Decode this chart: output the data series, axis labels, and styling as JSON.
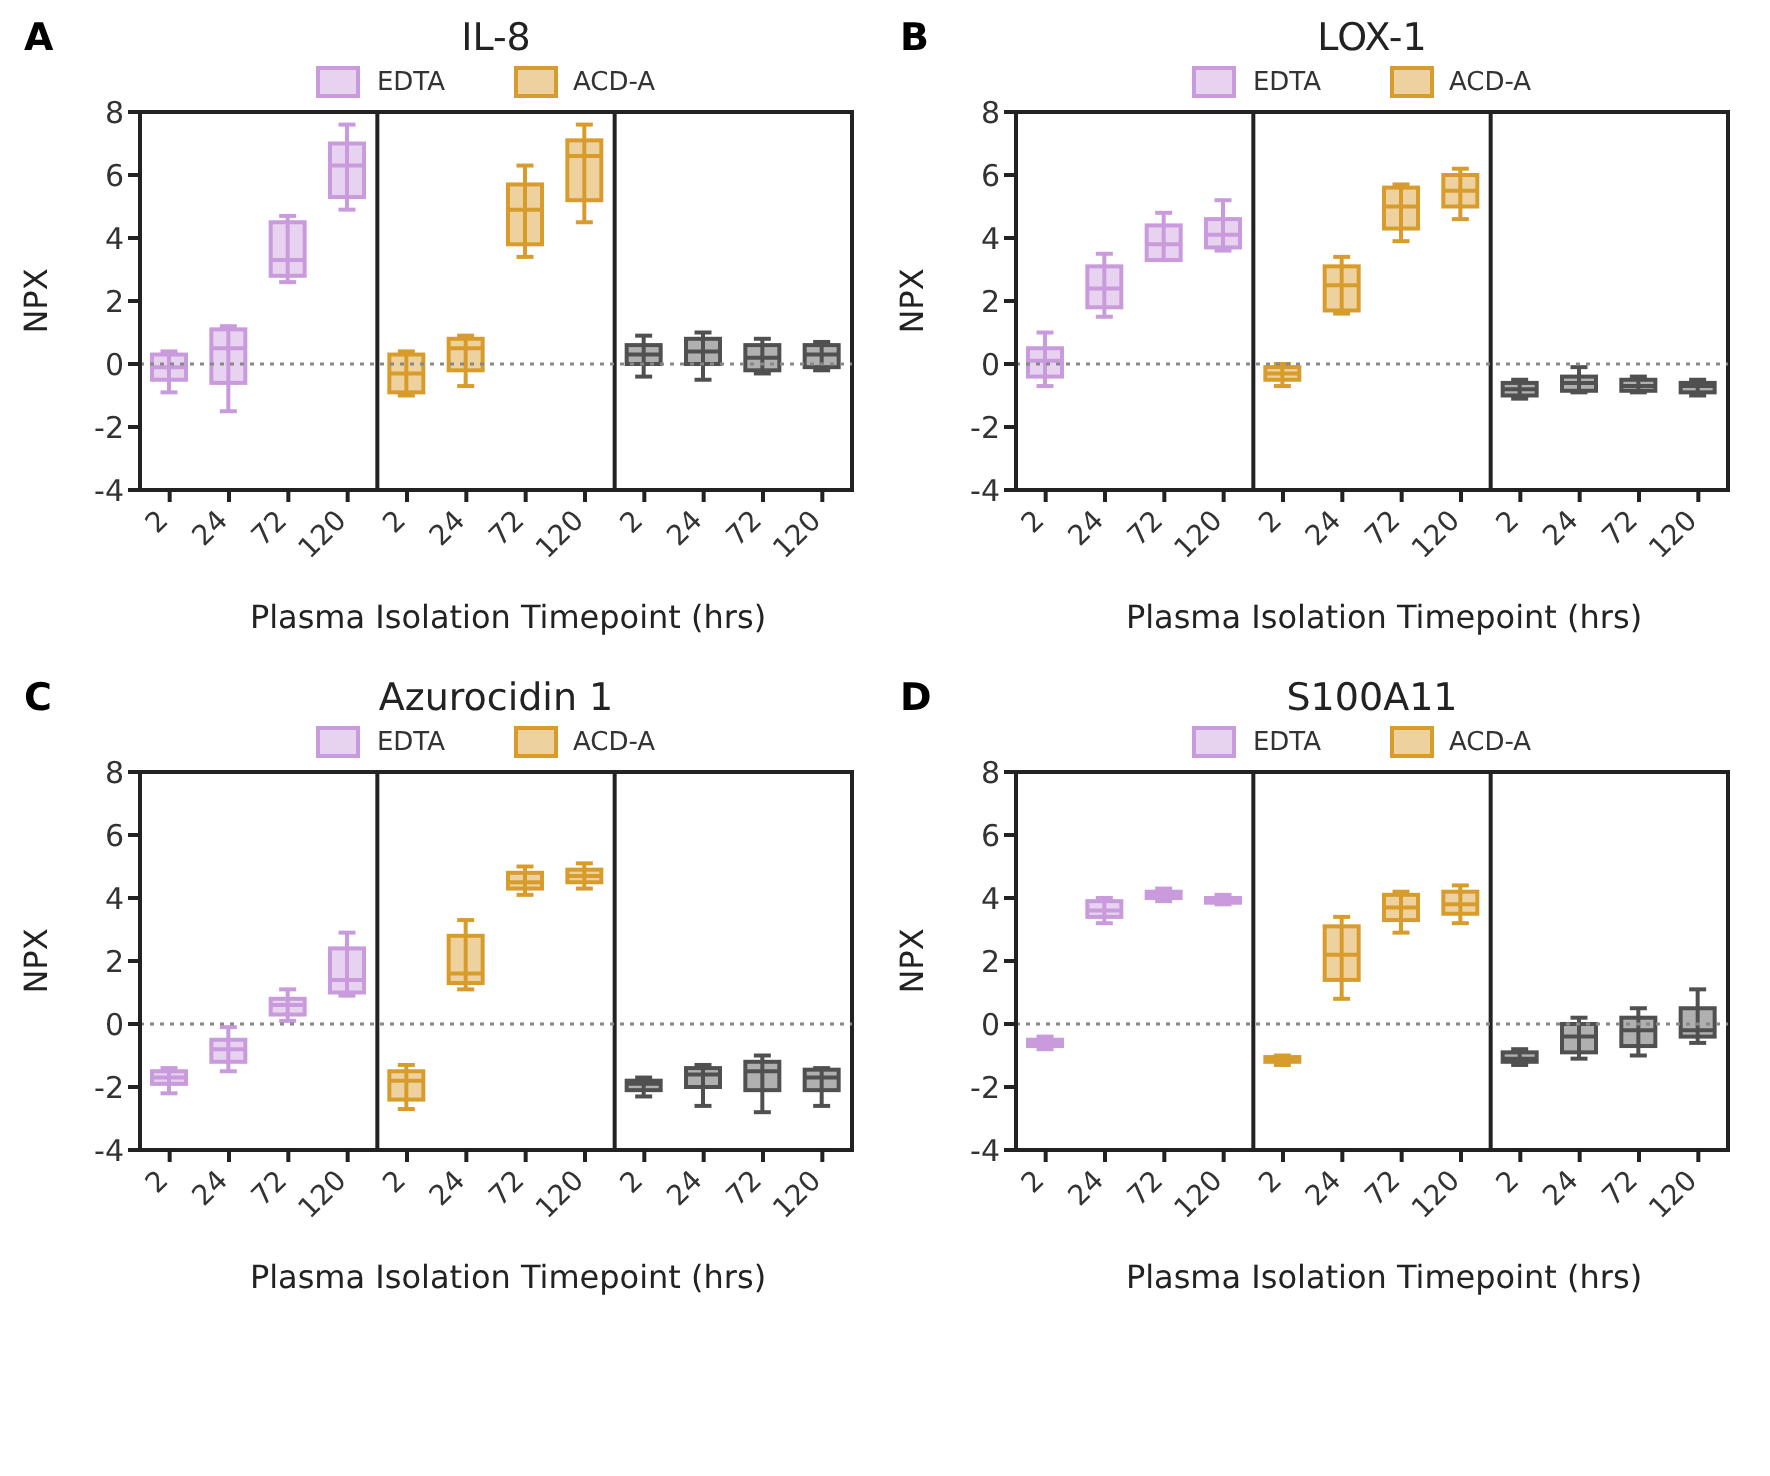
{
  "chart_data": [
    {
      "type": "box",
      "title": "IL-8",
      "annotations": [
        "A"
      ],
      "xlabel": "Plasma Isolation Timepoint (hrs)",
      "ylabel": "NPX",
      "categories": [
        "2",
        "24",
        "72",
        "120",
        "2",
        "24",
        "72",
        "120",
        "2",
        "24",
        "72",
        "120"
      ],
      "ylim": [
        -4,
        8
      ],
      "yticks": [
        -4,
        -2,
        0,
        2,
        4,
        6,
        8
      ],
      "legend": "top",
      "ref_lines": [
        {
          "axis": "y",
          "value": 0,
          "line_style": "dotted",
          "color": "#888888"
        }
      ],
      "series": [
        {
          "name": "EDTA",
          "color": "#c99bdc",
          "boxes": [
            {
              "low": -0.9,
              "q1": -0.5,
              "median": -0.1,
              "q3": 0.3,
              "high": 0.4
            },
            {
              "low": -1.5,
              "q1": -0.6,
              "median": 0.5,
              "q3": 1.1,
              "high": 1.2
            },
            {
              "low": 2.6,
              "q1": 2.8,
              "median": 3.3,
              "q3": 4.5,
              "high": 4.7
            },
            {
              "low": 4.9,
              "q1": 5.3,
              "median": 6.3,
              "q3": 7.0,
              "high": 7.6
            },
            null,
            null,
            null,
            null,
            null,
            null,
            null,
            null
          ]
        },
        {
          "name": "ACD-A",
          "color": "#d89c2c",
          "boxes": [
            null,
            null,
            null,
            null,
            {
              "low": -1.0,
              "q1": -0.9,
              "median": -0.3,
              "q3": 0.3,
              "high": 0.4
            },
            {
              "low": -0.7,
              "q1": -0.2,
              "median": 0.5,
              "q3": 0.8,
              "high": 0.9
            },
            {
              "low": 3.4,
              "q1": 3.8,
              "median": 4.9,
              "q3": 5.7,
              "high": 6.3
            },
            {
              "low": 4.5,
              "q1": 5.2,
              "median": 6.6,
              "q3": 7.1,
              "high": 7.6
            },
            null,
            null,
            null,
            null
          ]
        },
        {
          "color": "#505050",
          "boxes": [
            null,
            null,
            null,
            null,
            null,
            null,
            null,
            null,
            {
              "low": -0.4,
              "q1": 0.0,
              "median": 0.3,
              "q3": 0.6,
              "high": 0.9
            },
            {
              "low": -0.5,
              "q1": 0.0,
              "median": 0.4,
              "q3": 0.8,
              "high": 1.0
            },
            {
              "low": -0.3,
              "q1": -0.2,
              "median": 0.2,
              "q3": 0.6,
              "high": 0.8
            },
            {
              "low": -0.2,
              "q1": -0.1,
              "median": 0.3,
              "q3": 0.6,
              "high": 0.7
            }
          ]
        }
      ]
    },
    {
      "type": "box",
      "title": "LOX-1",
      "annotations": [
        "B"
      ],
      "xlabel": "Plasma Isolation Timepoint (hrs)",
      "ylabel": "NPX",
      "categories": [
        "2",
        "24",
        "72",
        "120",
        "2",
        "24",
        "72",
        "120",
        "2",
        "24",
        "72",
        "120"
      ],
      "ylim": [
        -4,
        8
      ],
      "yticks": [
        -4,
        -2,
        0,
        2,
        4,
        6,
        8
      ],
      "legend": "top",
      "ref_lines": [
        {
          "axis": "y",
          "value": 0,
          "line_style": "dotted",
          "color": "#888888"
        }
      ],
      "series": [
        {
          "name": "EDTA",
          "color": "#c99bdc",
          "boxes": [
            {
              "low": -0.7,
              "q1": -0.4,
              "median": 0.1,
              "q3": 0.5,
              "high": 1.0
            },
            {
              "low": 1.5,
              "q1": 1.8,
              "median": 2.4,
              "q3": 3.1,
              "high": 3.5
            },
            {
              "low": 3.3,
              "q1": 3.3,
              "median": 3.8,
              "q3": 4.4,
              "high": 4.8
            },
            {
              "low": 3.6,
              "q1": 3.7,
              "median": 4.1,
              "q3": 4.6,
              "high": 5.2
            },
            null,
            null,
            null,
            null,
            null,
            null,
            null,
            null
          ]
        },
        {
          "name": "ACD-A",
          "color": "#d89c2c",
          "boxes": [
            null,
            null,
            null,
            null,
            {
              "low": -0.7,
              "q1": -0.5,
              "median": -0.3,
              "q3": -0.1,
              "high": 0.0
            },
            {
              "low": 1.6,
              "q1": 1.7,
              "median": 2.5,
              "q3": 3.1,
              "high": 3.4
            },
            {
              "low": 3.9,
              "q1": 4.3,
              "median": 5.0,
              "q3": 5.6,
              "high": 5.7
            },
            {
              "low": 4.6,
              "q1": 5.0,
              "median": 5.5,
              "q3": 6.0,
              "high": 6.2
            },
            null,
            null,
            null,
            null
          ]
        },
        {
          "color": "#505050",
          "boxes": [
            null,
            null,
            null,
            null,
            null,
            null,
            null,
            null,
            {
              "low": -1.1,
              "q1": -1.0,
              "median": -0.8,
              "q3": -0.6,
              "high": -0.5
            },
            {
              "low": -0.9,
              "q1": -0.85,
              "median": -0.6,
              "q3": -0.4,
              "high": -0.1
            },
            {
              "low": -0.9,
              "q1": -0.85,
              "median": -0.7,
              "q3": -0.5,
              "high": -0.4
            },
            {
              "low": -1.0,
              "q1": -0.9,
              "median": -0.7,
              "q3": -0.6,
              "high": -0.5
            }
          ]
        }
      ]
    },
    {
      "type": "box",
      "title": "Azurocidin 1",
      "annotations": [
        "C"
      ],
      "xlabel": "Plasma Isolation Timepoint (hrs)",
      "ylabel": "NPX",
      "categories": [
        "2",
        "24",
        "72",
        "120",
        "2",
        "24",
        "72",
        "120",
        "2",
        "24",
        "72",
        "120"
      ],
      "ylim": [
        -4,
        8
      ],
      "yticks": [
        -4,
        -2,
        0,
        2,
        4,
        6,
        8
      ],
      "legend": "top",
      "ref_lines": [
        {
          "axis": "y",
          "value": 0,
          "line_style": "dotted",
          "color": "#888888"
        }
      ],
      "series": [
        {
          "name": "EDTA",
          "color": "#c99bdc",
          "boxes": [
            {
              "low": -2.2,
              "q1": -1.9,
              "median": -1.7,
              "q3": -1.5,
              "high": -1.4
            },
            {
              "low": -1.5,
              "q1": -1.2,
              "median": -0.8,
              "q3": -0.5,
              "high": -0.1
            },
            {
              "low": 0.1,
              "q1": 0.3,
              "median": 0.6,
              "q3": 0.8,
              "high": 1.1
            },
            {
              "low": 0.9,
              "q1": 1.0,
              "median": 1.4,
              "q3": 2.4,
              "high": 2.9
            },
            null,
            null,
            null,
            null,
            null,
            null,
            null,
            null
          ]
        },
        {
          "name": "ACD-A",
          "color": "#d89c2c",
          "boxes": [
            null,
            null,
            null,
            null,
            {
              "low": -2.7,
              "q1": -2.4,
              "median": -1.8,
              "q3": -1.5,
              "high": -1.3
            },
            {
              "low": 1.1,
              "q1": 1.3,
              "median": 1.6,
              "q3": 2.8,
              "high": 3.3
            },
            {
              "low": 4.1,
              "q1": 4.3,
              "median": 4.5,
              "q3": 4.8,
              "high": 5.0
            },
            {
              "low": 4.3,
              "q1": 4.5,
              "median": 4.7,
              "q3": 4.9,
              "high": 5.1
            },
            null,
            null,
            null,
            null
          ]
        },
        {
          "color": "#505050",
          "boxes": [
            null,
            null,
            null,
            null,
            null,
            null,
            null,
            null,
            {
              "low": -2.3,
              "q1": -2.1,
              "median": -1.9,
              "q3": -1.8,
              "high": -1.7
            },
            {
              "low": -2.6,
              "q1": -2.0,
              "median": -1.6,
              "q3": -1.4,
              "high": -1.3
            },
            {
              "low": -2.8,
              "q1": -2.1,
              "median": -1.5,
              "q3": -1.2,
              "high": -1.0
            },
            {
              "low": -2.6,
              "q1": -2.1,
              "median": -1.7,
              "q3": -1.45,
              "high": -1.4
            }
          ]
        }
      ]
    },
    {
      "type": "box",
      "title": "S100A11",
      "annotations": [
        "D"
      ],
      "xlabel": "Plasma Isolation Timepoint (hrs)",
      "ylabel": "NPX",
      "categories": [
        "2",
        "24",
        "72",
        "120",
        "2",
        "24",
        "72",
        "120",
        "2",
        "24",
        "72",
        "120"
      ],
      "ylim": [
        -4,
        8
      ],
      "yticks": [
        -4,
        -2,
        0,
        2,
        4,
        6,
        8
      ],
      "legend": "top",
      "ref_lines": [
        {
          "axis": "y",
          "value": 0,
          "line_style": "dotted",
          "color": "#888888"
        }
      ],
      "series": [
        {
          "name": "EDTA",
          "color": "#c99bdc",
          "boxes": [
            {
              "low": -0.8,
              "q1": -0.7,
              "median": -0.6,
              "q3": -0.5,
              "high": -0.4
            },
            {
              "low": 3.2,
              "q1": 3.4,
              "median": 3.6,
              "q3": 3.9,
              "high": 4.0
            },
            {
              "low": 3.9,
              "q1": 4.0,
              "median": 4.1,
              "q3": 4.2,
              "high": 4.3
            },
            {
              "low": 3.8,
              "q1": 3.85,
              "median": 3.9,
              "q3": 4.0,
              "high": 4.1
            },
            null,
            null,
            null,
            null,
            null,
            null,
            null,
            null
          ]
        },
        {
          "name": "ACD-A",
          "color": "#d89c2c",
          "boxes": [
            null,
            null,
            null,
            null,
            {
              "low": -1.3,
              "q1": -1.2,
              "median": -1.1,
              "q3": -1.05,
              "high": -1.0
            },
            {
              "low": 0.8,
              "q1": 1.4,
              "median": 2.2,
              "q3": 3.1,
              "high": 3.4
            },
            {
              "low": 2.9,
              "q1": 3.3,
              "median": 3.7,
              "q3": 4.1,
              "high": 4.2
            },
            {
              "low": 3.2,
              "q1": 3.5,
              "median": 3.8,
              "q3": 4.2,
              "high": 4.4
            },
            null,
            null,
            null,
            null
          ]
        },
        {
          "color": "#505050",
          "boxes": [
            null,
            null,
            null,
            null,
            null,
            null,
            null,
            null,
            {
              "low": -1.3,
              "q1": -1.2,
              "median": -1.1,
              "q3": -0.9,
              "high": -0.8
            },
            {
              "low": -1.1,
              "q1": -0.9,
              "median": -0.4,
              "q3": 0.0,
              "high": 0.2
            },
            {
              "low": -1.0,
              "q1": -0.7,
              "median": -0.2,
              "q3": 0.2,
              "high": 0.5
            },
            {
              "low": -0.6,
              "q1": -0.4,
              "median": -0.2,
              "q3": 0.5,
              "high": 1.1
            }
          ]
        }
      ]
    }
  ]
}
